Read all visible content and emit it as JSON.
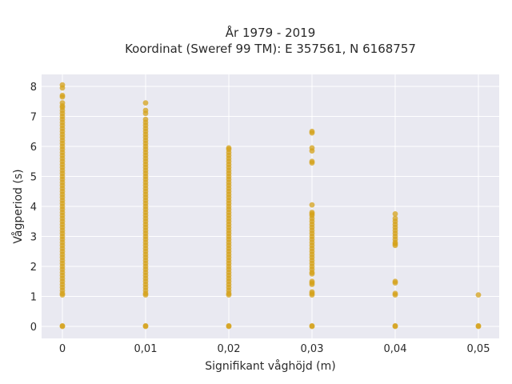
{
  "chart_data": {
    "type": "scatter",
    "title_line1": "År 1979 - 2019",
    "title_line2": "Koordinat (Sweref 99 TM): E 357561, N 6168757",
    "xlabel": "Signifikant våghöjd (m)",
    "ylabel": "Vågperiod (s)",
    "xlim": [
      -0.0025,
      0.0525
    ],
    "ylim": [
      -0.4,
      8.4
    ],
    "x_ticks": [
      0,
      0.01,
      0.02,
      0.03,
      0.04,
      0.05
    ],
    "x_tick_labels": [
      "0",
      "0,01",
      "0,02",
      "0,03",
      "0,04",
      "0,05"
    ],
    "y_ticks": [
      0,
      1,
      2,
      3,
      4,
      5,
      6,
      7,
      8
    ],
    "y_tick_labels": [
      "0",
      "1",
      "2",
      "3",
      "4",
      "5",
      "6",
      "7",
      "8"
    ],
    "grid": true,
    "background": "#e9e9f1",
    "marker_color": "#d4a21a",
    "series": [
      {
        "x": 0,
        "points": [
          0,
          0.02,
          1.05,
          1.1,
          1.2,
          1.3,
          1.4,
          1.5,
          1.6,
          1.7,
          1.8,
          1.9,
          2.0,
          2.1,
          2.2,
          2.3,
          2.4,
          2.5,
          2.6,
          2.7,
          2.8,
          2.9,
          3.0,
          3.1,
          3.2,
          3.3,
          3.4,
          3.5,
          3.6,
          3.7,
          3.8,
          3.9,
          4.0,
          4.1,
          4.2,
          4.3,
          4.4,
          4.5,
          4.6,
          4.7,
          4.8,
          4.9,
          5.0,
          5.1,
          5.2,
          5.3,
          5.4,
          5.5,
          5.6,
          5.7,
          5.8,
          5.9,
          6.0,
          6.1,
          6.2,
          6.3,
          6.4,
          6.5,
          6.6,
          6.7,
          6.8,
          6.9,
          7.0,
          7.1,
          7.2,
          7.3,
          7.35,
          7.45,
          7.65,
          7.7,
          7.95,
          8.05
        ]
      },
      {
        "x": 0.01,
        "points": [
          0,
          0.02,
          1.05,
          1.1,
          1.2,
          1.3,
          1.4,
          1.5,
          1.6,
          1.7,
          1.8,
          1.9,
          2.0,
          2.1,
          2.2,
          2.3,
          2.4,
          2.5,
          2.6,
          2.7,
          2.8,
          2.9,
          3.0,
          3.1,
          3.2,
          3.3,
          3.4,
          3.5,
          3.6,
          3.7,
          3.8,
          3.9,
          4.0,
          4.1,
          4.2,
          4.3,
          4.4,
          4.5,
          4.6,
          4.7,
          4.8,
          4.9,
          5.0,
          5.1,
          5.2,
          5.3,
          5.4,
          5.5,
          5.6,
          5.7,
          5.8,
          5.9,
          6.0,
          6.1,
          6.2,
          6.3,
          6.4,
          6.5,
          6.6,
          6.7,
          6.8,
          6.9,
          7.1,
          7.2,
          7.45
        ]
      },
      {
        "x": 0.02,
        "points": [
          0,
          0.02,
          1.05,
          1.1,
          1.2,
          1.3,
          1.4,
          1.5,
          1.6,
          1.7,
          1.8,
          1.9,
          2.0,
          2.1,
          2.2,
          2.3,
          2.4,
          2.5,
          2.6,
          2.7,
          2.8,
          2.9,
          3.0,
          3.1,
          3.2,
          3.3,
          3.4,
          3.5,
          3.6,
          3.7,
          3.8,
          3.9,
          4.0,
          4.1,
          4.2,
          4.3,
          4.4,
          4.5,
          4.6,
          4.7,
          4.8,
          4.9,
          5.0,
          5.1,
          5.2,
          5.3,
          5.4,
          5.5,
          5.6,
          5.7,
          5.8,
          5.9,
          5.95
        ]
      },
      {
        "x": 0.03,
        "points": [
          0,
          0.02,
          1.05,
          1.1,
          1.15,
          1.4,
          1.45,
          1.5,
          1.75,
          1.8,
          1.9,
          2.0,
          2.1,
          2.2,
          2.3,
          2.4,
          2.5,
          2.6,
          2.7,
          2.8,
          2.9,
          3.0,
          3.1,
          3.2,
          3.3,
          3.4,
          3.5,
          3.6,
          3.7,
          3.75,
          3.8,
          4.05,
          5.45,
          5.5,
          5.85,
          5.95,
          6.45,
          6.5
        ]
      },
      {
        "x": 0.04,
        "points": [
          0,
          0.02,
          1.05,
          1.1,
          1.45,
          1.5,
          2.7,
          2.75,
          2.8,
          2.9,
          3.0,
          3.1,
          3.2,
          3.3,
          3.4,
          3.5,
          3.6,
          3.75
        ]
      },
      {
        "x": 0.05,
        "points": [
          0,
          0.02,
          1.05
        ]
      }
    ]
  }
}
